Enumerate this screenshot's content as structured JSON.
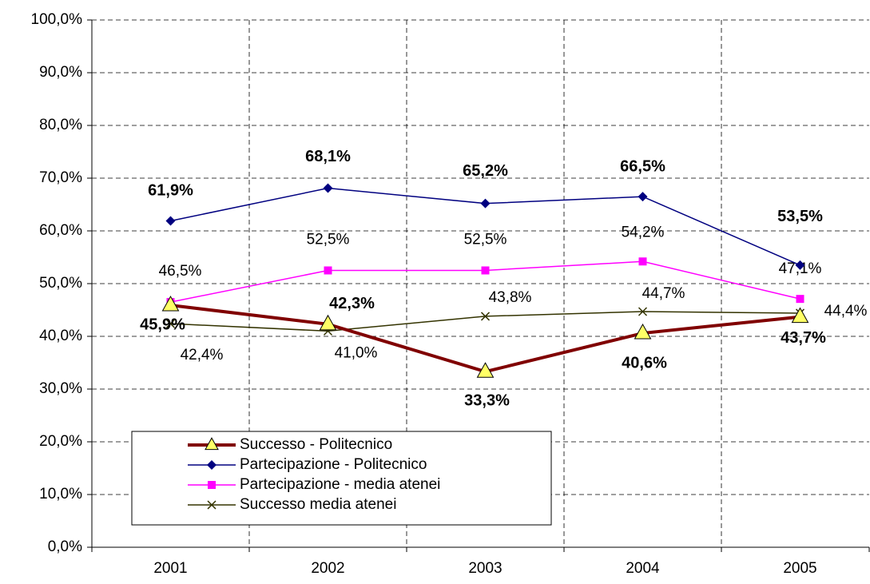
{
  "chart_data": {
    "type": "line",
    "categories": [
      "2001",
      "2002",
      "2003",
      "2004",
      "2005"
    ],
    "series": [
      {
        "name": "Successo - Politecnico",
        "color": "#800000",
        "marker_color": "#ffff66",
        "marker": "triangle",
        "values": [
          45.9,
          42.3,
          33.3,
          40.6,
          43.7
        ],
        "value_labels": [
          "45,9%",
          "42,3%",
          "33,3%",
          "40,6%",
          "43,7%"
        ]
      },
      {
        "name": "Partecipazione - Politecnico",
        "color": "#000080",
        "marker_color": "#000080",
        "marker": "diamond",
        "values": [
          61.9,
          68.1,
          65.2,
          66.5,
          53.5
        ],
        "value_labels": [
          "61,9%",
          "68,1%",
          "65,2%",
          "66,5%",
          "53,5%"
        ]
      },
      {
        "name": "Partecipazione - media atenei",
        "color": "#ff00ff",
        "marker_color": "#ff00ff",
        "marker": "square",
        "values": [
          46.5,
          52.5,
          52.5,
          54.2,
          47.1
        ],
        "value_labels": [
          "46,5%",
          "52,5%",
          "52,5%",
          "54,2%",
          "47,1%"
        ]
      },
      {
        "name": "Successo media atenei",
        "color": "#333300",
        "marker_color": "#333300",
        "marker": "x",
        "values": [
          42.4,
          41.0,
          43.8,
          44.7,
          44.4
        ],
        "value_labels": [
          "42,4%",
          "41,0%",
          "43,8%",
          "44,7%",
          "44,4%"
        ]
      }
    ],
    "ylim": [
      0,
      100
    ],
    "yticks": [
      {
        "value": 0,
        "label": "0,0%"
      },
      {
        "value": 10,
        "label": "10,0%"
      },
      {
        "value": 20,
        "label": "20,0%"
      },
      {
        "value": 30,
        "label": "30,0%"
      },
      {
        "value": 40,
        "label": "40,0%"
      },
      {
        "value": 50,
        "label": "50,0%"
      },
      {
        "value": 60,
        "label": "60,0%"
      },
      {
        "value": 70,
        "label": "70,0%"
      },
      {
        "value": 80,
        "label": "80,0%"
      },
      {
        "value": 90,
        "label": "90,0%"
      },
      {
        "value": 100,
        "label": "100,0%"
      }
    ],
    "grid": true,
    "legend": "lower left"
  }
}
